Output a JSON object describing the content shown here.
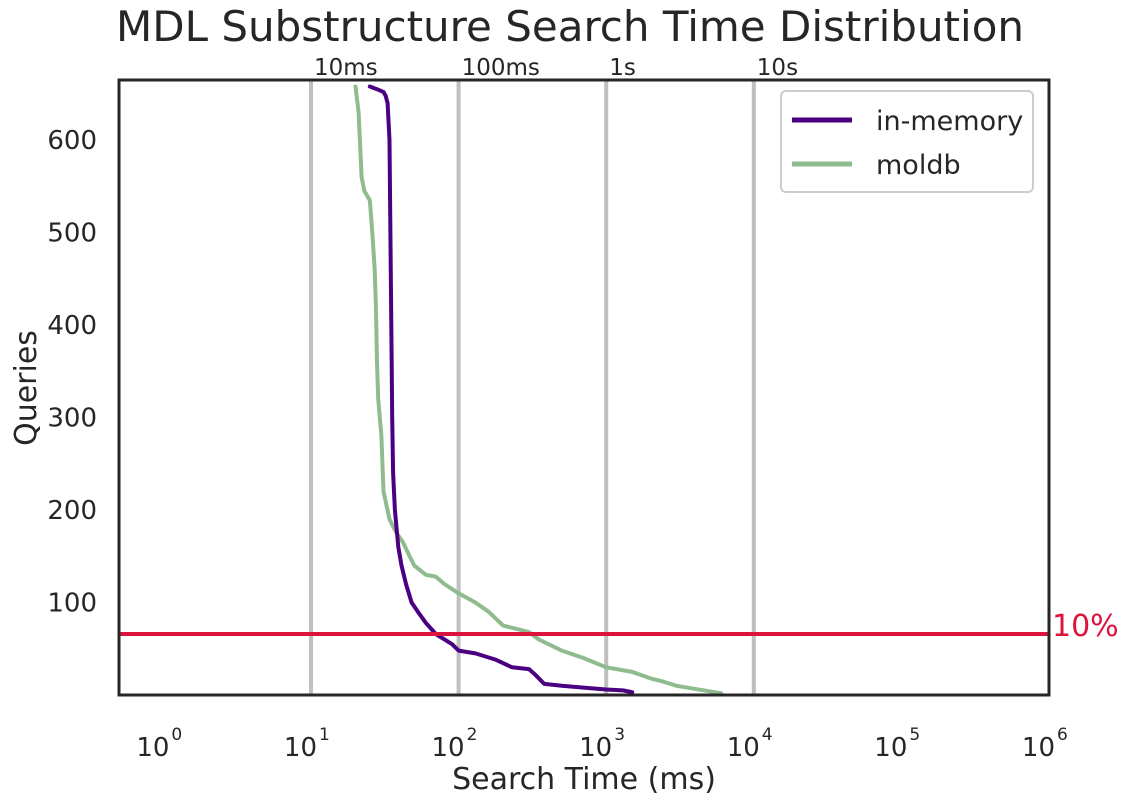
{
  "chart_data": {
    "type": "line",
    "title": "MDL Substructure Search Time Distribution",
    "xlabel": "Search Time (ms)",
    "ylabel": "Queries",
    "xscale": "log",
    "xlim": [
      0.5,
      1000000
    ],
    "ylim": [
      0,
      665
    ],
    "x_ticks": [
      {
        "base": "10",
        "exp": "0",
        "value": 1
      },
      {
        "base": "10",
        "exp": "1",
        "value": 10
      },
      {
        "base": "10",
        "exp": "2",
        "value": 100
      },
      {
        "base": "10",
        "exp": "3",
        "value": 1000
      },
      {
        "base": "10",
        "exp": "4",
        "value": 10000
      },
      {
        "base": "10",
        "exp": "5",
        "value": 100000
      },
      {
        "base": "10",
        "exp": "6",
        "value": 1000000
      }
    ],
    "y_ticks": [
      100,
      200,
      300,
      400,
      500,
      600
    ],
    "reference_lines": [
      {
        "label": "10ms",
        "value": 10
      },
      {
        "label": "100ms",
        "value": 100
      },
      {
        "label": "1s",
        "value": 1000
      },
      {
        "label": "10s",
        "value": 10000
      }
    ],
    "threshold": {
      "label": "10%",
      "value": 66,
      "color": "#dc143c"
    },
    "legend_position": "top-right",
    "series": [
      {
        "name": "in-memory",
        "color": "#4b0082",
        "points": [
          [
            25,
            658
          ],
          [
            28,
            655
          ],
          [
            31,
            652
          ],
          [
            32,
            648
          ],
          [
            33,
            640
          ],
          [
            34,
            600
          ],
          [
            34.5,
            500
          ],
          [
            35,
            400
          ],
          [
            35.5,
            300
          ],
          [
            36,
            240
          ],
          [
            37,
            200
          ],
          [
            39,
            160
          ],
          [
            41,
            140
          ],
          [
            44,
            120
          ],
          [
            48,
            100
          ],
          [
            53,
            90
          ],
          [
            60,
            78
          ],
          [
            70,
            66
          ],
          [
            90,
            55
          ],
          [
            100,
            48
          ],
          [
            130,
            45
          ],
          [
            180,
            38
          ],
          [
            230,
            30
          ],
          [
            300,
            28
          ],
          [
            330,
            22
          ],
          [
            380,
            12
          ],
          [
            500,
            10
          ],
          [
            700,
            8
          ],
          [
            1000,
            6
          ],
          [
            1300,
            5
          ],
          [
            1500,
            3
          ]
        ]
      },
      {
        "name": "moldb",
        "color": "#8fbc8f",
        "points": [
          [
            20,
            658
          ],
          [
            21,
            630
          ],
          [
            22,
            560
          ],
          [
            23,
            545
          ],
          [
            25,
            535
          ],
          [
            26,
            500
          ],
          [
            27,
            460
          ],
          [
            27.5,
            420
          ],
          [
            28,
            360
          ],
          [
            28.5,
            320
          ],
          [
            30,
            280
          ],
          [
            31,
            220
          ],
          [
            34,
            190
          ],
          [
            38,
            175
          ],
          [
            42,
            165
          ],
          [
            45,
            155
          ],
          [
            50,
            140
          ],
          [
            60,
            130
          ],
          [
            70,
            128
          ],
          [
            80,
            120
          ],
          [
            100,
            110
          ],
          [
            130,
            100
          ],
          [
            160,
            90
          ],
          [
            200,
            75
          ],
          [
            300,
            68
          ],
          [
            350,
            60
          ],
          [
            500,
            48
          ],
          [
            700,
            40
          ],
          [
            1000,
            30
          ],
          [
            1500,
            25
          ],
          [
            2000,
            18
          ],
          [
            2500,
            14
          ],
          [
            3000,
            10
          ],
          [
            5000,
            4
          ],
          [
            6000,
            2
          ]
        ]
      }
    ]
  }
}
